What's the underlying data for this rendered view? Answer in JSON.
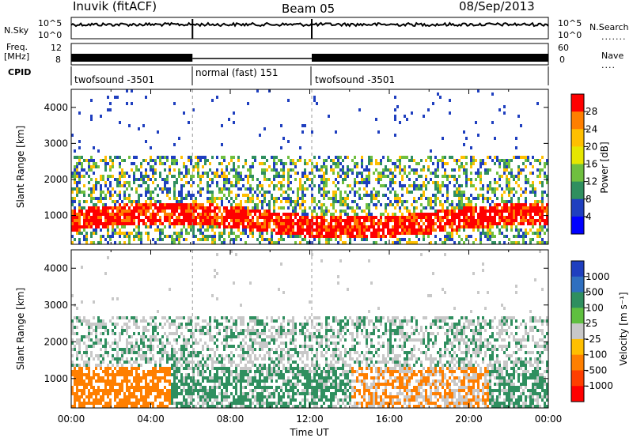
{
  "header": {
    "station": "Inuvik (fitACF)",
    "beam": "Beam 05",
    "date": "08/Sep/2013"
  },
  "summary_panel": {
    "nsky_label": "N.Sky",
    "nsky_ticks": [
      "10^5",
      "10^0"
    ],
    "nsearch_label": "N.Search",
    "freq_label": "Freq.",
    "freq_unit": "[MHz]",
    "freq_ticks": [
      "12",
      "8"
    ],
    "nave_label": "Nave",
    "nave_ticks": [
      "60",
      "0"
    ],
    "cpid_label": "CPID",
    "cpid_segments": [
      {
        "label": "twofsound -3501",
        "start_hour": 0,
        "end_hour": 6.1
      },
      {
        "label": "normal (fast) 151",
        "start_hour": 6.1,
        "end_hour": 12.1
      },
      {
        "label": "twofsound -3501",
        "start_hour": 12.1,
        "end_hour": 24
      }
    ]
  },
  "chart_data": [
    {
      "type": "heatmap",
      "parameter": "Power",
      "ylabel": "Slant Range [km]",
      "ylim": [
        200,
        4500
      ],
      "yticks": [
        "1000",
        "2000",
        "3000",
        "4000"
      ],
      "xlim": [
        0,
        24
      ],
      "colorbar_label": "Power [dB]",
      "colorbar_ticks": [
        "28",
        "24",
        "20",
        "16",
        "12",
        "8",
        "4"
      ],
      "colorbar_colors": [
        "#ff0000",
        "#ff7f00",
        "#ffbf00",
        "#e6e600",
        "#6fbf3f",
        "#2f8f5f",
        "#1f3fbf",
        "#0000ff"
      ]
    },
    {
      "type": "heatmap",
      "parameter": "Velocity",
      "ylabel": "Slant Range [km]",
      "ylim": [
        200,
        4500
      ],
      "yticks": [
        "1000",
        "2000",
        "3000",
        "4000"
      ],
      "xlim": [
        0,
        24
      ],
      "xlabel": "Time UT",
      "xticks": [
        "00:00",
        "04:00",
        "08:00",
        "12:00",
        "16:00",
        "20:00",
        "00:00"
      ],
      "colorbar_label": "Velocity [m s⁻¹]",
      "colorbar_ticks": [
        "1000",
        "500",
        "100",
        "25",
        "-25",
        "-100",
        "-500",
        "-1000"
      ],
      "colorbar_colors": [
        "#1f3fbf",
        "#2f6fbf",
        "#2f8f5f",
        "#5fbf3f",
        "#c8c8c8",
        "#ffbf00",
        "#ff7f00",
        "#ff3f00",
        "#ff0000"
      ]
    }
  ]
}
